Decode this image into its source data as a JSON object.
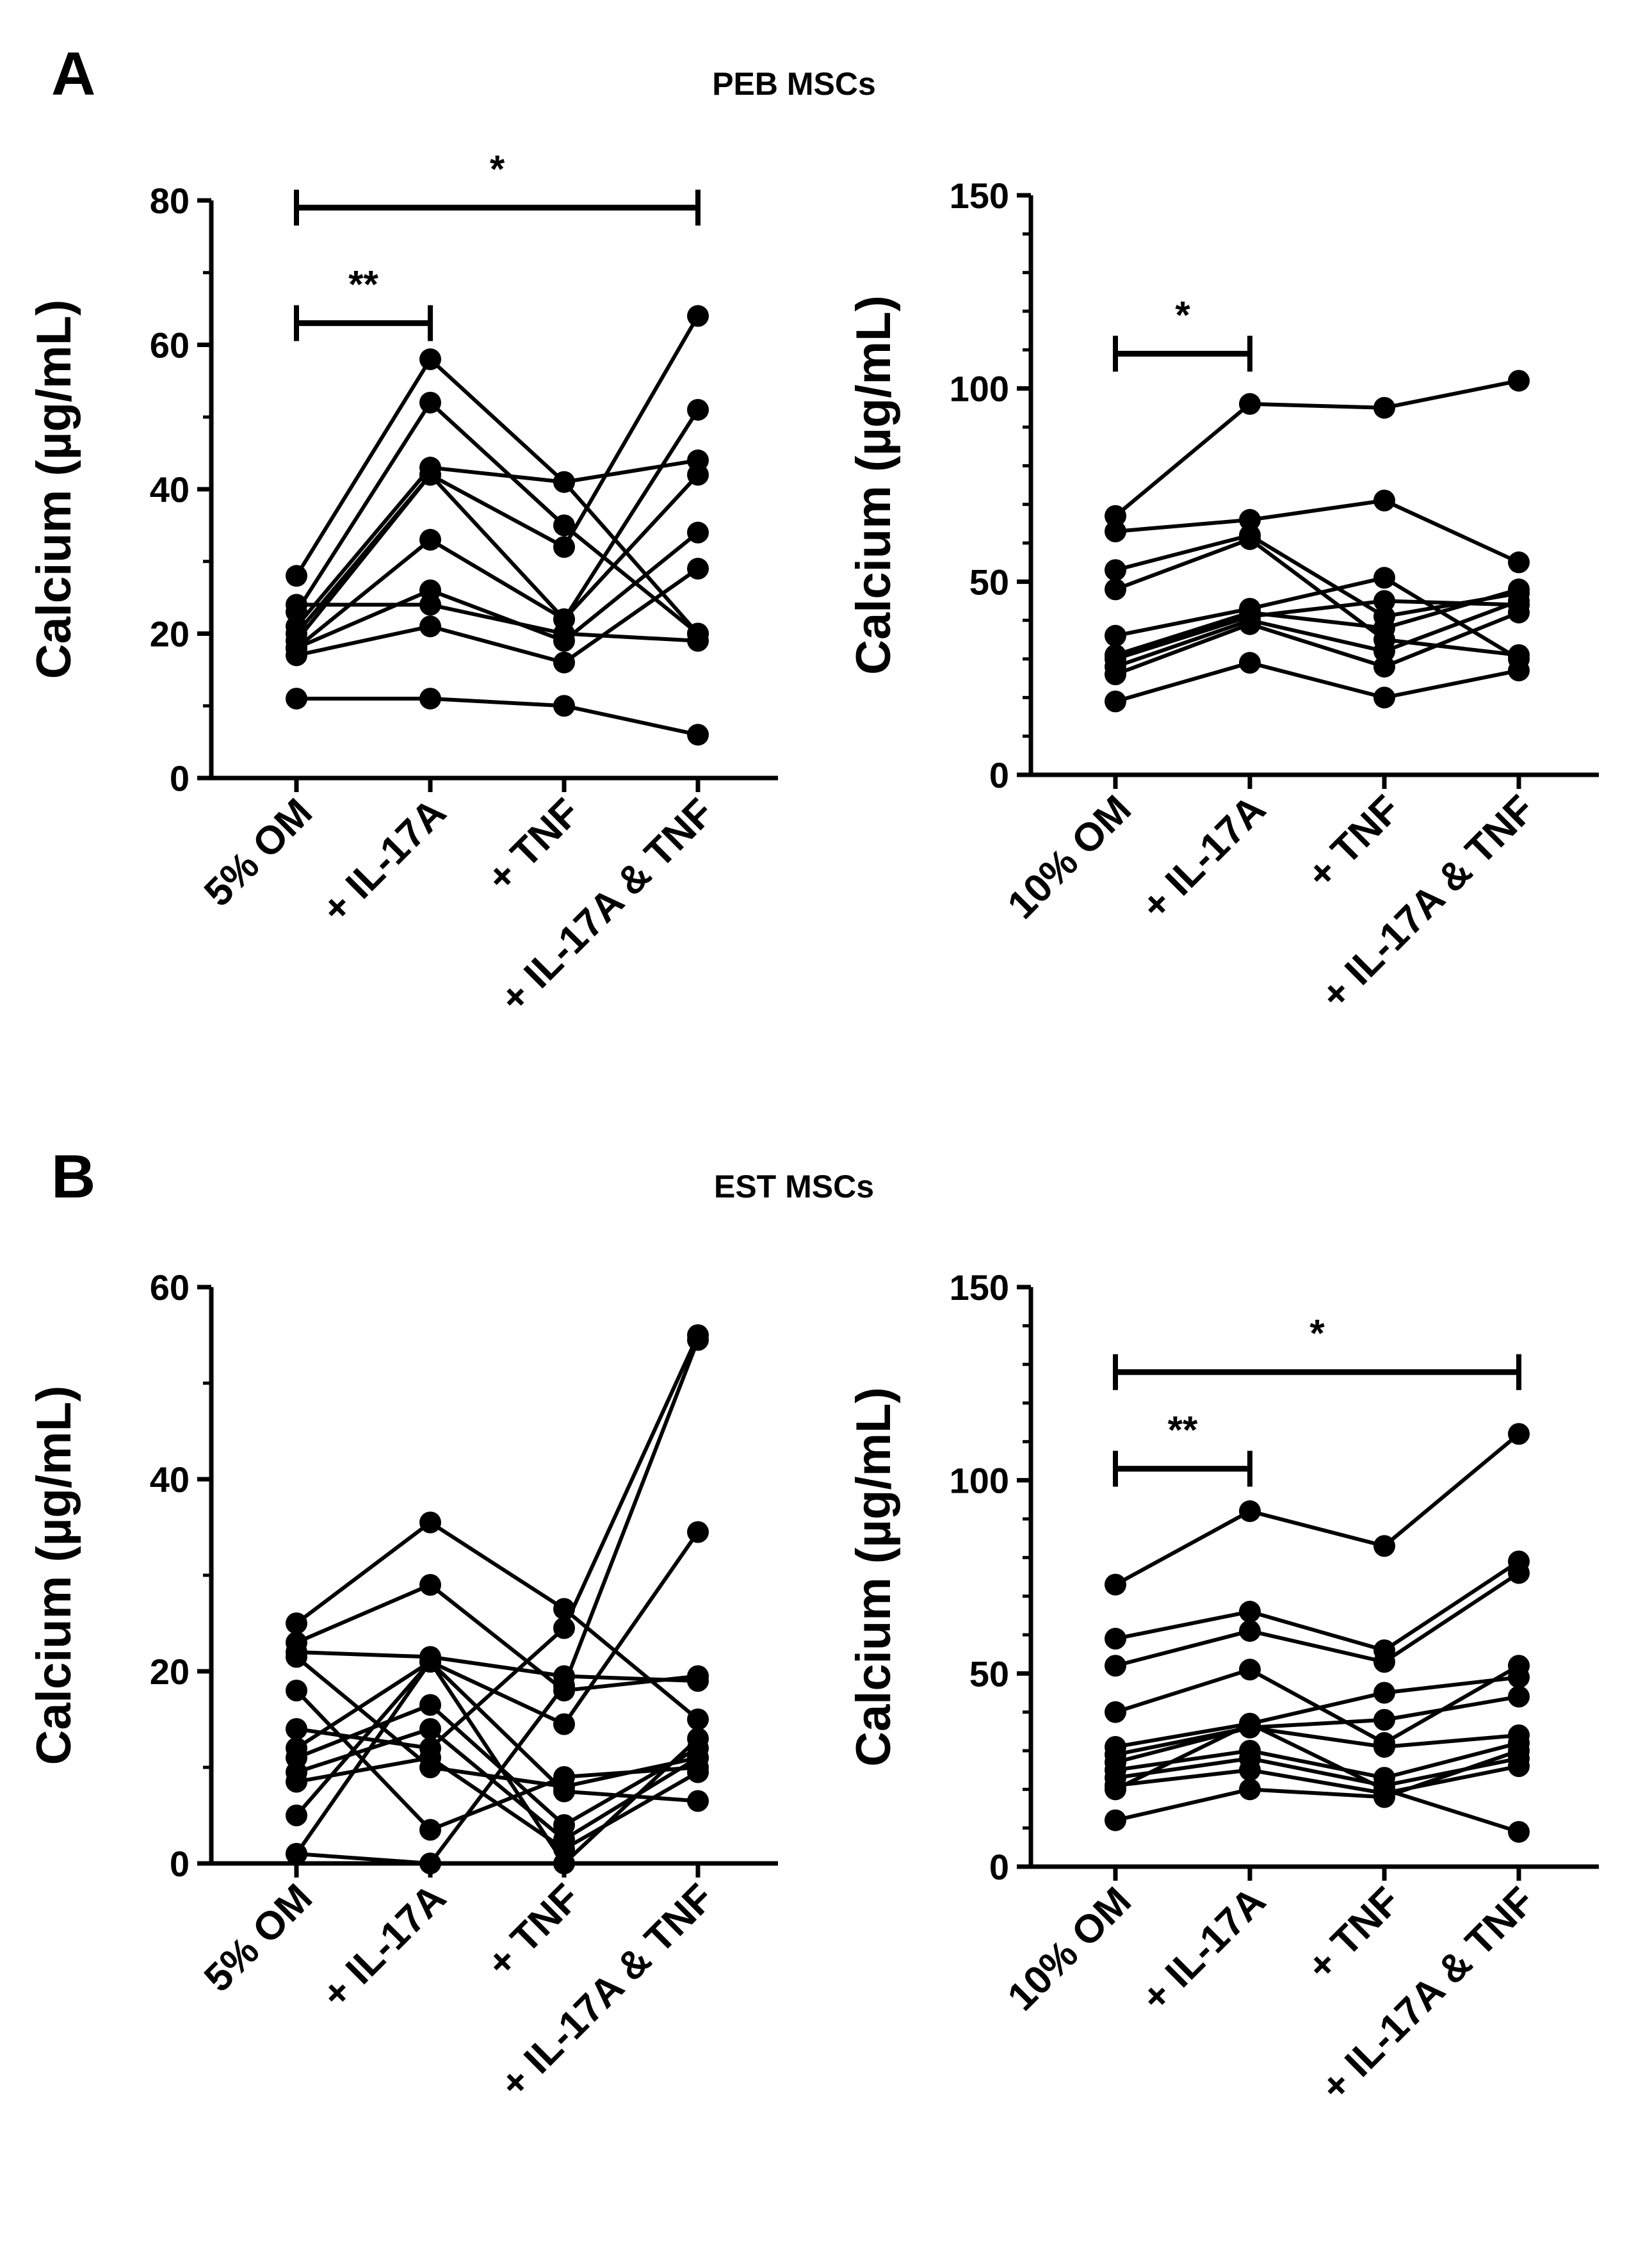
{
  "panels": [
    {
      "letter": "A",
      "title": "PEB MSCs"
    },
    {
      "letter": "B",
      "title": "EST MSCs"
    }
  ],
  "chart_data": [
    {
      "type": "line",
      "panel": "A",
      "categories": [
        "5% OM",
        "+ IL-17A",
        "+ TNF",
        "+ IL-17A & TNF"
      ],
      "ylabel": "Calcium (µg/mL)",
      "ylim": [
        0,
        80
      ],
      "yticks": [
        0,
        20,
        40,
        60,
        80
      ],
      "series": [
        {
          "values": [
            28,
            58,
            41,
            20
          ]
        },
        {
          "values": [
            23,
            52,
            35,
            20
          ]
        },
        {
          "values": [
            21,
            43,
            41,
            44
          ]
        },
        {
          "values": [
            20,
            42,
            32,
            64
          ]
        },
        {
          "values": [
            19,
            42,
            22,
            51
          ]
        },
        {
          "values": [
            18,
            33,
            22,
            42
          ]
        },
        {
          "values": [
            18,
            26,
            19,
            34
          ]
        },
        {
          "values": [
            17,
            21,
            16,
            29
          ]
        },
        {
          "values": [
            24,
            24,
            20,
            19
          ]
        },
        {
          "values": [
            11,
            11,
            10,
            6
          ]
        }
      ],
      "significance": [
        {
          "from": 0,
          "to": 1,
          "label": "**",
          "y": 63
        },
        {
          "from": 0,
          "to": 3,
          "label": "*",
          "y": 79
        }
      ]
    },
    {
      "type": "line",
      "panel": "A",
      "categories": [
        "10% OM",
        "+ IL-17A",
        "+ TNF",
        "+ IL-17A & TNF"
      ],
      "ylabel": "Calcium (µg/mL)",
      "ylim": [
        0,
        150
      ],
      "yticks": [
        0,
        50,
        100,
        150
      ],
      "series": [
        {
          "values": [
            67,
            96,
            95,
            102
          ]
        },
        {
          "values": [
            63,
            66,
            71,
            55
          ]
        },
        {
          "values": [
            53,
            62,
            41,
            47
          ]
        },
        {
          "values": [
            48,
            61,
            35,
            31
          ]
        },
        {
          "values": [
            36,
            43,
            51,
            30
          ]
        },
        {
          "values": [
            31,
            42,
            38,
            48
          ]
        },
        {
          "values": [
            30,
            41,
            45,
            44
          ]
        },
        {
          "values": [
            28,
            40,
            32,
            45
          ]
        },
        {
          "values": [
            26,
            39,
            28,
            42
          ]
        },
        {
          "values": [
            19,
            29,
            20,
            27
          ]
        }
      ],
      "significance": [
        {
          "from": 0,
          "to": 1,
          "label": "*",
          "y": 109
        }
      ]
    },
    {
      "type": "line",
      "panel": "B",
      "categories": [
        "5% OM",
        "+ IL-17A",
        "+ TNF",
        "+ IL-17A & TNF"
      ],
      "ylabel": "Calcium (µg/mL)",
      "ylim": [
        0,
        60
      ],
      "yticks": [
        0,
        20,
        40,
        60
      ],
      "series": [
        {
          "values": [
            25,
            35.5,
            26.5,
            15
          ]
        },
        {
          "values": [
            23,
            29,
            18,
            19.5
          ]
        },
        {
          "values": [
            22,
            21.5,
            19.5,
            19
          ]
        },
        {
          "values": [
            21.5,
            10,
            8,
            11
          ]
        },
        {
          "values": [
            18,
            3.5,
            9,
            10
          ]
        },
        {
          "values": [
            14,
            12,
            24.5,
            55
          ]
        },
        {
          "values": [
            12,
            21,
            14.5,
            34.5
          ]
        },
        {
          "values": [
            11,
            16.5,
            4,
            12
          ]
        },
        {
          "values": [
            9.5,
            14,
            2.5,
            11
          ]
        },
        {
          "values": [
            8.5,
            11,
            1.5,
            9.5
          ]
        },
        {
          "values": [
            5,
            21,
            0,
            13
          ]
        },
        {
          "values": [
            1,
            0,
            18.5,
            54.5
          ]
        },
        {
          "values": [
            1,
            21,
            7.5,
            6.5
          ]
        }
      ],
      "significance": []
    },
    {
      "type": "line",
      "panel": "B",
      "categories": [
        "10% OM",
        "+ IL-17A",
        "+ TNF",
        "+ IL-17A & TNF"
      ],
      "ylabel": "Calcium (µg/mL)",
      "ylim": [
        0,
        150
      ],
      "yticks": [
        0,
        50,
        100,
        150
      ],
      "series": [
        {
          "values": [
            73,
            92,
            83,
            112
          ]
        },
        {
          "values": [
            59,
            66,
            56,
            79
          ]
        },
        {
          "values": [
            52,
            61,
            53,
            76
          ]
        },
        {
          "values": [
            40,
            51,
            32,
            52
          ]
        },
        {
          "values": [
            31,
            37,
            45,
            49
          ]
        },
        {
          "values": [
            29,
            36,
            38,
            44
          ]
        },
        {
          "values": [
            27,
            36,
            31,
            34
          ]
        },
        {
          "values": [
            25,
            30,
            23,
            32
          ]
        },
        {
          "values": [
            23,
            28,
            21,
            28
          ]
        },
        {
          "values": [
            21,
            25,
            19,
            26
          ]
        },
        {
          "values": [
            20,
            37,
            20,
            9
          ]
        },
        {
          "values": [
            12,
            20,
            18,
            30
          ]
        }
      ],
      "significance": [
        {
          "from": 0,
          "to": 1,
          "label": "**",
          "y": 103
        },
        {
          "from": 0,
          "to": 3,
          "label": "*",
          "y": 128
        }
      ]
    }
  ]
}
